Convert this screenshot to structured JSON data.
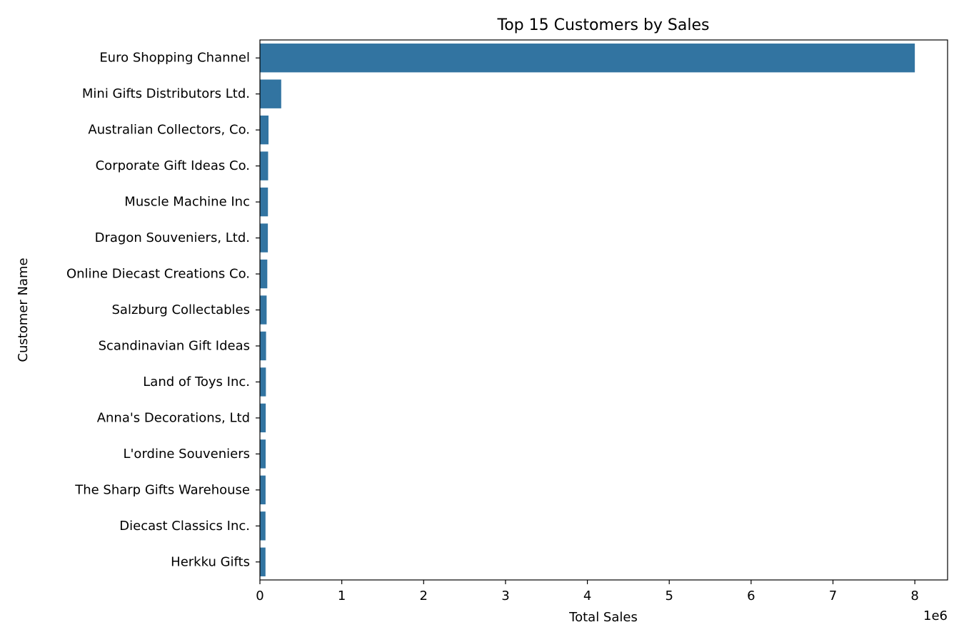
{
  "chart_data": {
    "type": "bar",
    "orientation": "horizontal",
    "title": "Top 15 Customers by Sales",
    "xlabel": "Total Sales",
    "ylabel": "Customer Name",
    "x_offset_label": "1e6",
    "x_scale": 1000000,
    "xlim": [
      0,
      8400000
    ],
    "x_ticks": [
      0,
      1,
      2,
      3,
      4,
      5,
      6,
      7,
      8
    ],
    "grid": false,
    "bar_color": "#3274a1",
    "categories": [
      "Euro Shopping Channel",
      "Mini Gifts Distributors Ltd.",
      "Australian Collectors, Co.",
      "Corporate Gift Ideas Co.",
      "Muscle Machine Inc",
      "Dragon Souveniers, Ltd.",
      "Online Diecast Creations Co.",
      "Salzburg Collectables",
      "Scandinavian Gift Ideas",
      "Land of Toys Inc.",
      "Anna's Decorations, Ltd",
      "L'ordine Souveniers",
      "The Sharp Gifts Warehouse",
      "Diecast Classics Inc.",
      "Herkku Gifts"
    ],
    "values": [
      8000000,
      260000,
      105000,
      100000,
      98000,
      97000,
      90000,
      82000,
      75000,
      73000,
      71000,
      70000,
      69000,
      68000,
      68000
    ]
  }
}
